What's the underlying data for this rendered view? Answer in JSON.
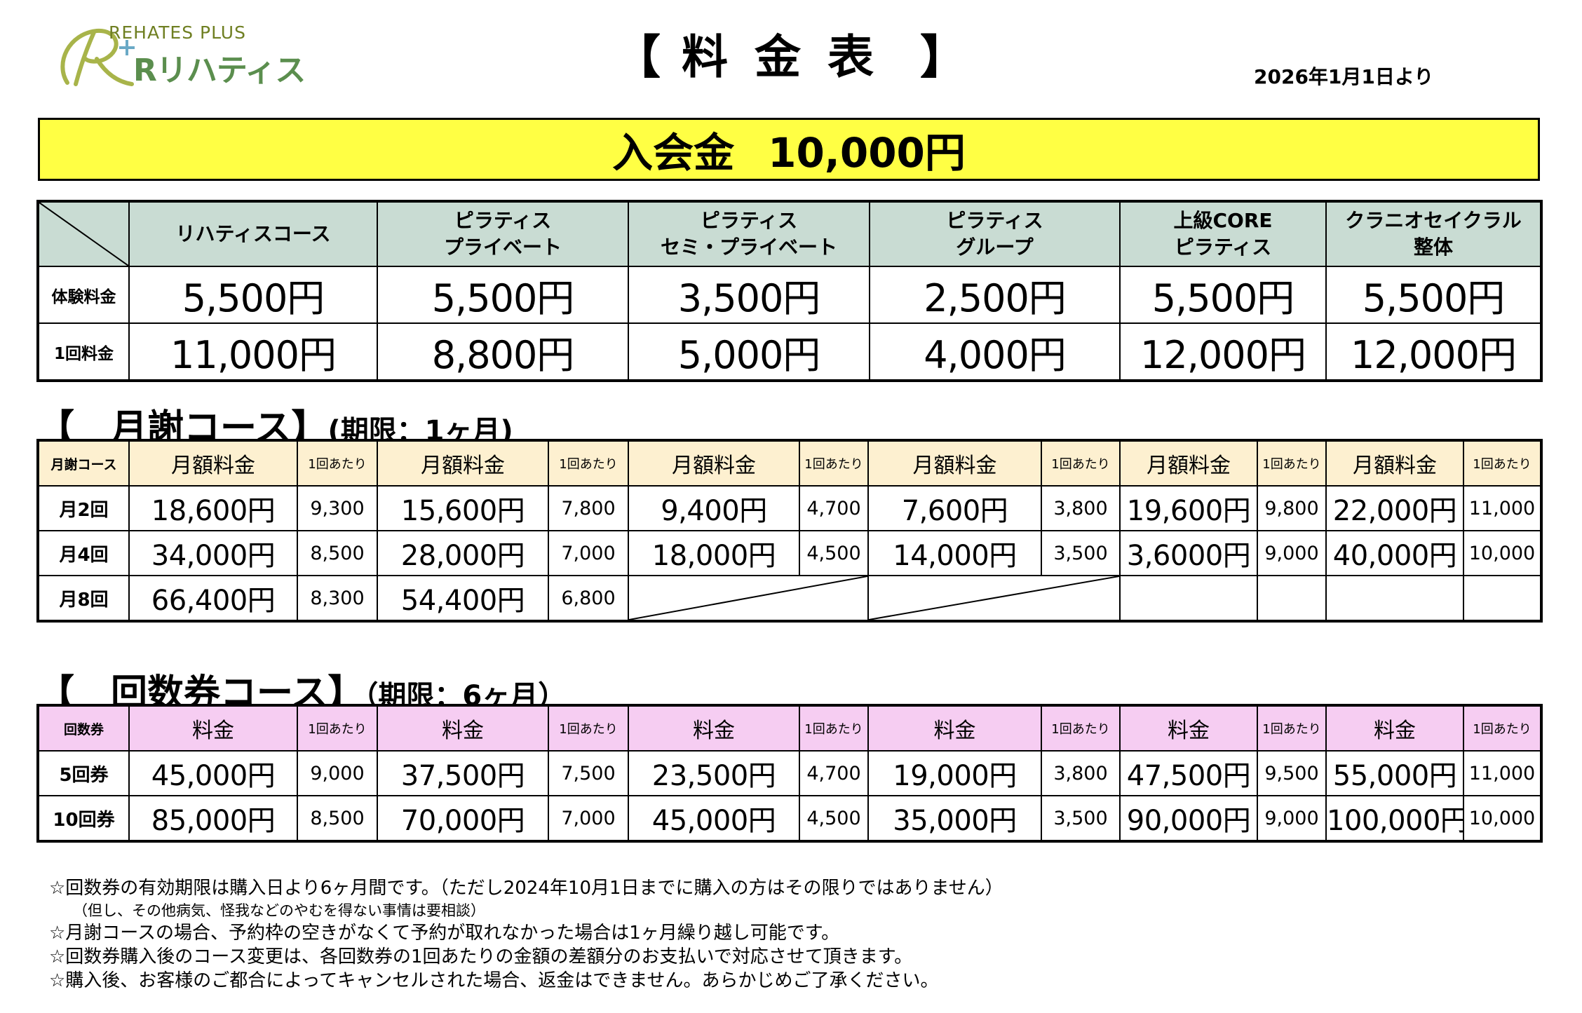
{
  "header": {
    "logo_tagline": "REHATES PLUS",
    "logo_name": "Rリハティス",
    "title_left": "【",
    "title_word": "料金表",
    "title_right": "】",
    "date": "2026年1月1日より"
  },
  "entry_fee": {
    "label": "入会金",
    "amount": "10,000円",
    "color": "#ffff44"
  },
  "trial_table": {
    "header_color": "#c9dcd3",
    "courses": [
      {
        "l1": "リハティスコース",
        "l2": ""
      },
      {
        "l1": "ピラティス",
        "l2": "プライベート"
      },
      {
        "l1": "ピラティス",
        "l2": "セミ・プライベート"
      },
      {
        "l1": "ピラティス",
        "l2": "グループ"
      },
      {
        "l1": "上級CORE",
        "l2": "ピラティス"
      },
      {
        "l1": "クラニオセイクラル",
        "l2": "整体"
      }
    ],
    "rows": [
      {
        "label": "体験料金",
        "values": [
          "5,500円",
          "5,500円",
          "3,500円",
          "2,500円",
          "5,500円",
          "5,500円"
        ]
      },
      {
        "label": "1回料金",
        "values": [
          "11,000円",
          "8,800円",
          "5,000円",
          "4,000円",
          "12,000円",
          "12,000円"
        ]
      }
    ]
  },
  "monthly": {
    "title": "【　月謝コース】",
    "subtitle": "(期限：1ヶ月)",
    "header_color": "#fdf0d0",
    "header": {
      "label": "月謝コース",
      "price": "月額料金",
      "per": "1回あたり"
    },
    "rows": [
      {
        "label": "月2回",
        "cells": [
          [
            "18,600円",
            "9,300"
          ],
          [
            "15,600円",
            "7,800"
          ],
          [
            "9,400円",
            "4,700"
          ],
          [
            "7,600円",
            "3,800"
          ],
          [
            "19,600円",
            "9,800"
          ],
          [
            "22,000円",
            "11,000"
          ]
        ]
      },
      {
        "label": "月4回",
        "cells": [
          [
            "34,000円",
            "8,500"
          ],
          [
            "28,000円",
            "7,000"
          ],
          [
            "18,000円",
            "4,500"
          ],
          [
            "14,000円",
            "3,500"
          ],
          [
            "3,6000円",
            "9,000"
          ],
          [
            "40,000円",
            "10,000"
          ]
        ]
      },
      {
        "label": "月8回",
        "cells": [
          [
            "66,400円",
            "8,300"
          ],
          [
            "54,400円",
            "6,800"
          ],
          [
            "",
            ""
          ],
          [
            "",
            ""
          ],
          [
            "",
            ""
          ],
          [
            "",
            ""
          ]
        ]
      }
    ]
  },
  "ticket": {
    "title": "【　回数券コース】",
    "subtitle": "（期限：6ヶ月）",
    "header_color": "#f6cdf2",
    "header": {
      "label": "回数券",
      "price": "料金",
      "per": "1回あたり"
    },
    "rows": [
      {
        "label": "5回券",
        "cells": [
          [
            "45,000円",
            "9,000"
          ],
          [
            "37,500円",
            "7,500"
          ],
          [
            "23,500円",
            "4,700"
          ],
          [
            "19,000円",
            "3,800"
          ],
          [
            "47,500円",
            "9,500"
          ],
          [
            "55,000円",
            "11,000"
          ]
        ]
      },
      {
        "label": "10回券",
        "cells": [
          [
            "85,000円",
            "8,500"
          ],
          [
            "70,000円",
            "7,000"
          ],
          [
            "45,000円",
            "4,500"
          ],
          [
            "35,000円",
            "3,500"
          ],
          [
            "90,000円",
            "9,000"
          ],
          [
            "100,000円",
            "10,000"
          ]
        ]
      }
    ]
  },
  "notes": [
    {
      "text": "☆回数券の有効期限は購入日より6ヶ月間です。（ただし2024年10月1日までに購入の方はその限りではありません）",
      "small": false
    },
    {
      "text": "（但し、その他病気、怪我などのやむを得ない事情は要相談）",
      "small": true
    },
    {
      "text": "☆月謝コースの場合、予約枠の空きがなくて予約が取れなかった場合は1ヶ月繰り越し可能です。",
      "small": false
    },
    {
      "text": "☆回数券購入後のコース変更は、各回数券の1回あたりの金額の差額分のお支払いで対応させて頂きます。",
      "small": false
    },
    {
      "text": "☆購入後、お客様のご都合によってキャンセルされた場合、返金はできません。あらかじめご了承ください。",
      "small": false
    }
  ]
}
